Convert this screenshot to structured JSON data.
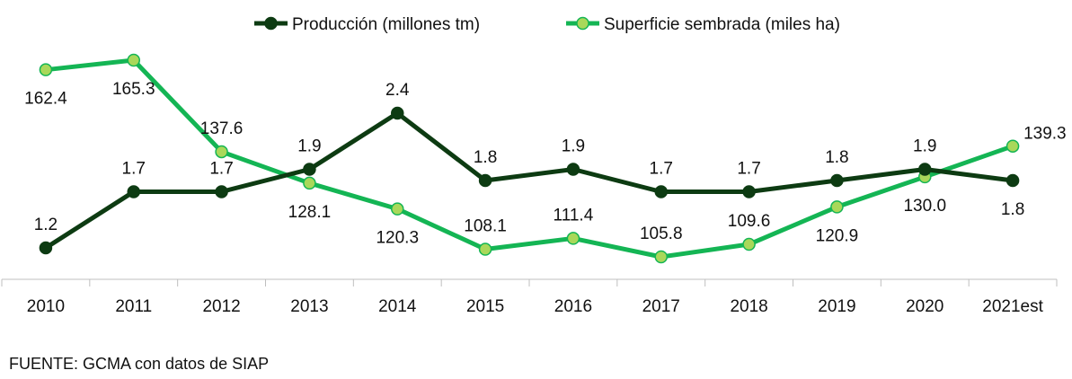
{
  "chart_data": {
    "type": "line",
    "title": "",
    "xlabel": "",
    "ylabel": "",
    "grid": false,
    "legend_position": "top-center",
    "categories": [
      "2010",
      "2011",
      "2012",
      "2013",
      "2014",
      "2015",
      "2016",
      "2017",
      "2018",
      "2019",
      "2020",
      "2021est"
    ],
    "series": [
      {
        "name": "Producción (millones tm)",
        "color": "#0d3b12",
        "marker_fill": "#0d3b12",
        "values": [
          1.2,
          1.7,
          1.7,
          1.9,
          2.4,
          1.8,
          1.9,
          1.7,
          1.7,
          1.8,
          1.9,
          1.8
        ],
        "labels": [
          "1.2",
          "1.7",
          "1.7",
          "1.9",
          "2.4",
          "1.8",
          "1.9",
          "1.7",
          "1.7",
          "1.8",
          "1.9",
          "1.8"
        ],
        "label_positions": [
          "above",
          "above",
          "above",
          "above",
          "above",
          "above",
          "above",
          "above",
          "above",
          "above",
          "above",
          "below"
        ]
      },
      {
        "name": "Superficie sembrada (miles ha)",
        "color": "#14b554",
        "marker_fill": "#a9d85a",
        "values": [
          162.4,
          165.3,
          137.6,
          128.1,
          120.3,
          108.1,
          111.4,
          105.8,
          109.6,
          120.9,
          130.0,
          139.3
        ],
        "labels": [
          "162.4",
          "165.3",
          "137.6",
          "128.1",
          "120.3",
          "108.1",
          "111.4",
          "105.8",
          "109.6",
          "120.9",
          "130.0",
          "139.3"
        ],
        "label_positions": [
          "below",
          "below",
          "above",
          "below",
          "below",
          "above",
          "above",
          "above",
          "above",
          "below",
          "below",
          "right"
        ]
      }
    ]
  },
  "source": "FUENTE: GCMA con datos de SIAP"
}
